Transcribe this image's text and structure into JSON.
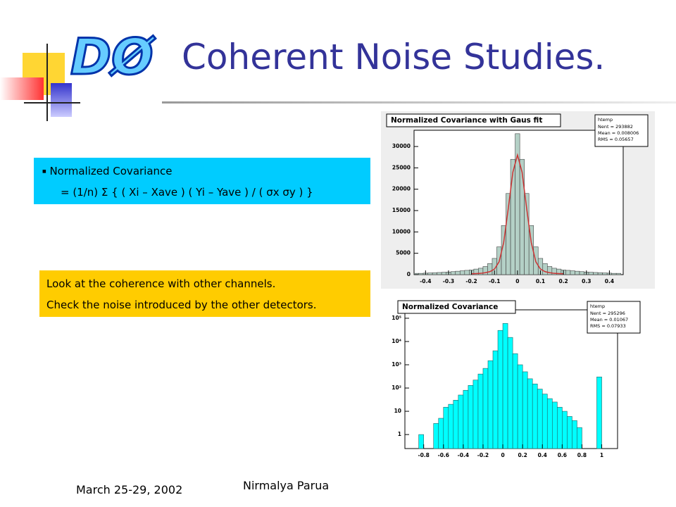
{
  "header": {
    "logo": "DØ",
    "title": "Coherent Noise Studies."
  },
  "definition": {
    "heading": "Normalized Covariance",
    "formula": "= (1/n) Σ { ( Xi – Xave ) ( Yi – Yave ) / ( σx σy ) }"
  },
  "notes": [
    "Look at the coherence with other channels.",
    "Check the noise introduced by the other detectors."
  ],
  "footer": {
    "date": "March 25-29, 2002",
    "author": "Nirmalya Parua"
  },
  "chart_data": [
    {
      "type": "histogram",
      "title": "Normalized Covariance with Gaus fit",
      "color": "#b4d0c6",
      "stats": {
        "name": "htemp",
        "lines": [
          "Nent = 293882",
          "Mean = 0.008006",
          "RMS = 0.05657"
        ]
      },
      "bins": [
        -0.45,
        -0.43,
        -0.41,
        -0.39,
        -0.37,
        -0.35,
        -0.33,
        -0.31,
        -0.29,
        -0.27,
        -0.25,
        -0.23,
        -0.21,
        -0.19,
        -0.17,
        -0.15,
        -0.13,
        -0.11,
        -0.09,
        -0.07,
        -0.05,
        -0.03,
        -0.01,
        0.01,
        0.03,
        0.05,
        0.07,
        0.09,
        0.11,
        0.13,
        0.15,
        0.17,
        0.19,
        0.21,
        0.23,
        0.25,
        0.27,
        0.29,
        0.31,
        0.33,
        0.35,
        0.37,
        0.39,
        0.41,
        0.43,
        0.45
      ],
      "values": [
        300,
        300,
        350,
        400,
        450,
        500,
        550,
        600,
        700,
        800,
        900,
        1000,
        1100,
        1300,
        1500,
        1900,
        2600,
        3800,
        6500,
        11500,
        19000,
        27000,
        33000,
        27000,
        19000,
        11500,
        6500,
        3800,
        2600,
        1900,
        1500,
        1300,
        1100,
        1000,
        900,
        800,
        700,
        600,
        550,
        500,
        450,
        400,
        350,
        300,
        300
      ],
      "fit": {
        "color": "#cc3333",
        "x": [
          -0.2,
          -0.18,
          -0.16,
          -0.14,
          -0.12,
          -0.1,
          -0.08,
          -0.06,
          -0.04,
          -0.02,
          0,
          0.02,
          0.04,
          0.06,
          0.08,
          0.1,
          0.12,
          0.14,
          0.16,
          0.18,
          0.2
        ],
        "values": [
          200,
          250,
          300,
          450,
          700,
          1300,
          3000,
          7500,
          15500,
          24000,
          28000,
          24000,
          15500,
          7500,
          3000,
          1300,
          700,
          450,
          300,
          250,
          200
        ]
      },
      "xlim": [
        -0.45,
        0.46
      ],
      "xticks": [
        -0.4,
        -0.3,
        -0.2,
        -0.1,
        0,
        0.1,
        0.2,
        0.3,
        0.4
      ],
      "ylim": [
        0,
        33800
      ],
      "yticks": [
        0,
        5000,
        10000,
        15000,
        20000,
        25000,
        30000
      ],
      "log_y": false
    },
    {
      "type": "histogram",
      "title": "Normalized Covariance",
      "color": "#00ffff",
      "stats": {
        "name": "htemp",
        "lines": [
          "Nent = 295296",
          "Mean = 0.01067",
          "RMS = 0.07933"
        ]
      },
      "bins": [
        -0.85,
        -0.8,
        -0.75,
        -0.7,
        -0.65,
        -0.6,
        -0.55,
        -0.5,
        -0.45,
        -0.4,
        -0.35,
        -0.3,
        -0.25,
        -0.2,
        -0.15,
        -0.1,
        -0.05,
        0,
        0.05,
        0.1,
        0.15,
        0.2,
        0.25,
        0.3,
        0.35,
        0.4,
        0.45,
        0.5,
        0.55,
        0.6,
        0.65,
        0.7,
        0.75,
        0.8,
        0.85,
        0.9,
        0.95,
        1,
        1.05
      ],
      "values": [
        1,
        0,
        0,
        3,
        5,
        15,
        20,
        30,
        50,
        80,
        130,
        220,
        400,
        700,
        1500,
        4000,
        30000,
        60000,
        15000,
        3000,
        1000,
        500,
        250,
        150,
        90,
        55,
        35,
        25,
        15,
        10,
        6,
        4,
        2,
        0,
        0,
        0,
        300,
        0
      ],
      "xlim": [
        -0.99,
        1.16
      ],
      "xticks": [
        -0.8,
        -0.6,
        -0.4,
        -0.2,
        0,
        0.2,
        0.4,
        0.6,
        0.8,
        1
      ],
      "ylim": [
        0.25,
        230000
      ],
      "yticks": [
        1,
        10,
        {
          "value": 100,
          "label": "10²"
        },
        {
          "value": 1000,
          "label": "10³"
        },
        {
          "value": 10000,
          "label": "10⁴"
        },
        {
          "value": 100000,
          "label": "10⁵"
        }
      ],
      "log_y": true
    }
  ]
}
